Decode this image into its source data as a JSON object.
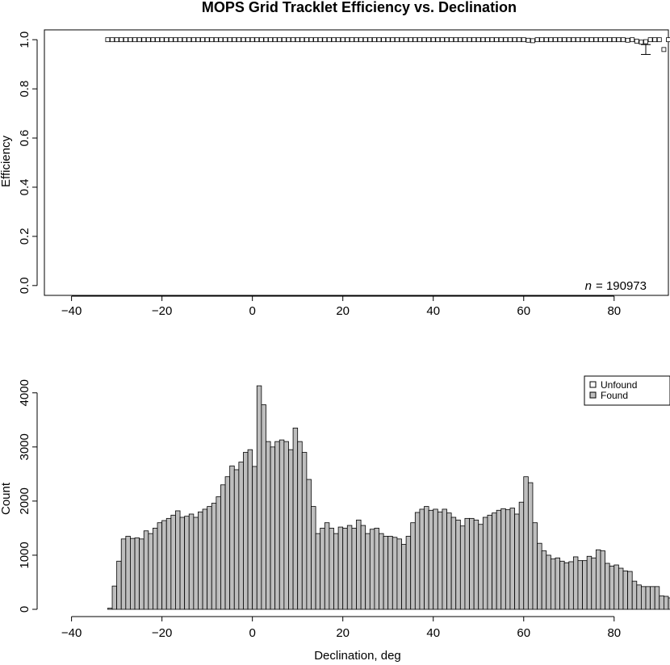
{
  "title": "MOPS Grid Tracklet Efficiency vs. Declination",
  "n_label_prefix": "n",
  "n_label_value": "= 190973",
  "chart_data": [
    {
      "type": "scatter",
      "title": "MOPS Grid Tracklet Efficiency vs. Declination",
      "xlabel": "",
      "ylabel": "Efficiency",
      "xlim": [
        -46,
        92
      ],
      "ylim": [
        -0.04,
        1.04
      ],
      "xticks": [
        "-40",
        "-20",
        "0",
        "20",
        "40",
        "60",
        "80"
      ],
      "xtick_values": [
        -40,
        -20,
        0,
        20,
        40,
        60,
        80
      ],
      "yticks": [
        "0.0",
        "0.2",
        "0.4",
        "0.6",
        "0.8",
        "1.0"
      ],
      "ytick_values": [
        0,
        0.2,
        0.4,
        0.6,
        0.8,
        1.0
      ],
      "marker": "open-square",
      "annotation": "n = 190973",
      "x_start": -32,
      "x_step": 1,
      "y": [
        1,
        1,
        1,
        1,
        1,
        1,
        1,
        1,
        1,
        1,
        1,
        1,
        1,
        1,
        1,
        1,
        1,
        1,
        1,
        1,
        1,
        1,
        1,
        1,
        1,
        1,
        1,
        1,
        1,
        1,
        1,
        1,
        1,
        1,
        1,
        1,
        1,
        1,
        1,
        1,
        1,
        1,
        1,
        1,
        1,
        1,
        1,
        1,
        1,
        1,
        1,
        1,
        1,
        1,
        1,
        1,
        1,
        1,
        1,
        1,
        1,
        1,
        1,
        1,
        1,
        1,
        1,
        1,
        1,
        1,
        1,
        1,
        1,
        1,
        1,
        1,
        1,
        1,
        1,
        1,
        1,
        1,
        1,
        1,
        1,
        1,
        1,
        1,
        1,
        1,
        1,
        1,
        1,
        0.998,
        0.996,
        1,
        1,
        1,
        1,
        1,
        1,
        1,
        1,
        1,
        1,
        1,
        1,
        1,
        1,
        1,
        1,
        1,
        1,
        1,
        1,
        0.998,
        1,
        0.994,
        0.99,
        0.992,
        1,
        1,
        1,
        0.96,
        1
      ],
      "error_bars": [
        {
          "x": 87,
          "low": 0.94,
          "high": 0.98
        }
      ]
    },
    {
      "type": "bar",
      "title": "",
      "xlabel": "Declination, deg",
      "ylabel": "Count",
      "xlim": [
        -46,
        92
      ],
      "ylim": [
        0,
        4250
      ],
      "xticks": [
        "-40",
        "-20",
        "0",
        "20",
        "40",
        "60",
        "80"
      ],
      "xtick_values": [
        -40,
        -20,
        0,
        20,
        40,
        60,
        80
      ],
      "yticks": [
        "0",
        "1000",
        "2000",
        "3000",
        "4000"
      ],
      "ytick_values": [
        0,
        1000,
        2000,
        3000,
        4000
      ],
      "bin_start": -31,
      "bin_width": 1,
      "legend": {
        "placement": "top-right",
        "entries": [
          {
            "name": "Unfound",
            "color": "#ffffff"
          },
          {
            "name": "Found",
            "color": "#bebebe"
          }
        ]
      },
      "pre_bins": [
        {
          "x0": -46,
          "x1": -32,
          "value": 0
        },
        {
          "x0": -32,
          "x1": -31,
          "value": 20
        }
      ],
      "found": [
        430,
        890,
        1300,
        1350,
        1310,
        1320,
        1300,
        1450,
        1400,
        1500,
        1600,
        1640,
        1680,
        1740,
        1820,
        1700,
        1720,
        1760,
        1700,
        1800,
        1850,
        1900,
        1960,
        2080,
        2300,
        2450,
        2650,
        2580,
        2720,
        2900,
        2950,
        2640,
        4130,
        3780,
        3100,
        3000,
        3100,
        3130,
        3100,
        2950,
        3350,
        3100,
        2900,
        2400,
        1900,
        1400,
        1500,
        1600,
        1500,
        1400,
        1520,
        1500,
        1550,
        1500,
        1650,
        1550,
        1400,
        1480,
        1500,
        1400,
        1350,
        1350,
        1330,
        1300,
        1200,
        1350,
        1600,
        1790,
        1850,
        1900,
        1830,
        1850,
        1800,
        1850,
        1780,
        1700,
        1650,
        1540,
        1680,
        1680,
        1650,
        1570,
        1700,
        1740,
        1780,
        1830,
        1860,
        1840,
        1870,
        1760,
        1980,
        2450,
        2340,
        1600,
        1220,
        1080,
        1000,
        930,
        950,
        890,
        860,
        880,
        970,
        900,
        900,
        980,
        950,
        1100,
        1080,
        850,
        800,
        820,
        760,
        710,
        700,
        520,
        450,
        420,
        420,
        420,
        420,
        250,
        240,
        210,
        120,
        50
      ]
    }
  ]
}
